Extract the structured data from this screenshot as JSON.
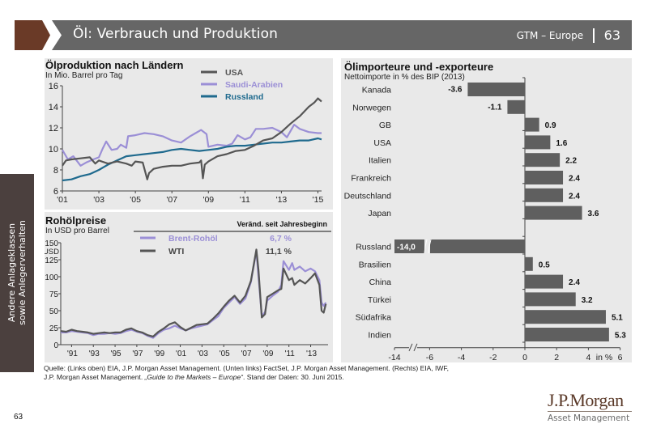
{
  "header": {
    "title": "Öl: Verbrauch und Produktion",
    "section": "GTM – Europe",
    "page": "63",
    "accent_color": "#6a3a27",
    "bar_color": "#666666"
  },
  "side_tab": {
    "line1": "Andere Anlageklassen",
    "line2": "sowie Anlegerverhalten"
  },
  "chart_data": [
    {
      "type": "line",
      "title": "Ölproduktion nach Ländern",
      "subtitle": "In Mio. Barrel pro Tag",
      "xlabel": "",
      "ylabel": "",
      "ylim": [
        6,
        16
      ],
      "yticks": [
        6,
        8,
        10,
        12,
        14,
        16
      ],
      "xlim": [
        2001,
        2015.2
      ],
      "xticks": [
        2001,
        2003,
        2005,
        2007,
        2009,
        2011,
        2013,
        2015
      ],
      "xtick_labels": [
        "'01",
        "'03",
        "'05",
        "'07",
        "'09",
        "'11",
        "'13",
        "'15"
      ],
      "legend_position": "top-center",
      "series": [
        {
          "name": "USA",
          "color": "#555555",
          "x": [
            2001,
            2001.2,
            2001.5,
            2002,
            2002.5,
            2002.8,
            2003,
            2003.5,
            2004,
            2004.5,
            2004.8,
            2005,
            2005.4,
            2005.65,
            2005.75,
            2006,
            2006.5,
            2007,
            2007.5,
            2008,
            2008.5,
            2008.6,
            2008.7,
            2008.8,
            2009,
            2009.5,
            2010,
            2010.5,
            2011,
            2011.5,
            2012,
            2012.5,
            2013,
            2013.5,
            2014,
            2014.5,
            2014.8,
            2015,
            2015.2
          ],
          "values": [
            8.4,
            8.9,
            9.0,
            9.1,
            9.2,
            8.6,
            8.9,
            8.6,
            8.8,
            8.6,
            8.4,
            8.8,
            8.7,
            7.1,
            7.7,
            8.1,
            8.3,
            8.4,
            8.4,
            8.6,
            8.7,
            8.9,
            7.2,
            8.5,
            8.8,
            9.3,
            9.5,
            9.8,
            9.9,
            10.3,
            10.8,
            11.0,
            11.6,
            12.4,
            13.1,
            14.0,
            14.4,
            14.8,
            14.5
          ]
        },
        {
          "name": "Saudi-Arabien",
          "color": "#9b8fd6",
          "x": [
            2001,
            2001.3,
            2001.6,
            2002,
            2002.3,
            2002.7,
            2003,
            2003.2,
            2003.4,
            2003.7,
            2004,
            2004.2,
            2004.5,
            2004.6,
            2005,
            2005.5,
            2006,
            2006.5,
            2007,
            2007.5,
            2008,
            2008.3,
            2008.6,
            2008.9,
            2009,
            2009.5,
            2010,
            2010.3,
            2010.6,
            2011,
            2011.3,
            2011.6,
            2012,
            2012.5,
            2013,
            2013.3,
            2013.7,
            2014,
            2014.5,
            2015,
            2015.2
          ],
          "values": [
            9.9,
            9.0,
            9.3,
            8.4,
            8.7,
            9.0,
            9.2,
            10.0,
            10.7,
            9.9,
            10.0,
            10.4,
            10.1,
            11.2,
            11.3,
            11.5,
            11.4,
            11.2,
            10.8,
            10.6,
            11.2,
            11.5,
            11.8,
            11.4,
            10.2,
            10.4,
            10.3,
            10.5,
            11.3,
            10.9,
            11.1,
            11.9,
            11.9,
            12.0,
            11.6,
            11.1,
            12.3,
            11.9,
            11.6,
            11.5,
            11.5
          ]
        },
        {
          "name": "Russland",
          "color": "#1f6a8e",
          "x": [
            2001,
            2001.5,
            2002,
            2002.5,
            2003,
            2003.5,
            2004,
            2004.5,
            2005,
            2005.5,
            2006,
            2006.5,
            2007,
            2007.5,
            2008,
            2008.5,
            2009,
            2009.5,
            2010,
            2010.5,
            2011,
            2011.5,
            2012,
            2012.5,
            2013,
            2013.5,
            2014,
            2014.5,
            2015,
            2015.2
          ],
          "values": [
            7.0,
            7.1,
            7.4,
            7.6,
            8.0,
            8.5,
            8.9,
            9.3,
            9.4,
            9.5,
            9.6,
            9.7,
            9.9,
            10.0,
            9.9,
            9.8,
            9.9,
            10.0,
            10.2,
            10.3,
            10.3,
            10.4,
            10.5,
            10.6,
            10.6,
            10.7,
            10.8,
            10.8,
            11.0,
            10.9
          ]
        }
      ]
    },
    {
      "type": "line",
      "title": "Rohölpreise",
      "subtitle": "In USD pro Barrel",
      "ylabel": "USD",
      "ylim": [
        0,
        150
      ],
      "yticks": [
        0,
        25,
        50,
        75,
        100,
        125,
        150
      ],
      "xlim": [
        1990,
        2014.6
      ],
      "xticks": [
        1991,
        1993,
        1995,
        1997,
        1999,
        2001,
        2003,
        2005,
        2007,
        2009,
        2011,
        2013
      ],
      "xtick_labels": [
        "'91",
        "'93",
        "'95",
        "'97",
        "'99",
        "'01",
        "'03",
        "'05",
        "'07",
        "'09",
        "'11",
        "'13"
      ],
      "legend_header": "Veränd. seit Jahresbeginn",
      "legend_position": "top-right",
      "series": [
        {
          "name": "Brent-Rohöl",
          "ytd_change": "6,7 %",
          "color": "#9b8fd6",
          "x": [
            1990,
            1990.5,
            1991,
            1991.5,
            1992,
            1992.5,
            1993,
            1993.5,
            1994,
            1994.5,
            1995,
            1995.5,
            1996,
            1996.5,
            1997,
            1997.5,
            1998,
            1998.5,
            1999,
            1999.5,
            2000,
            2000.5,
            2001,
            2001.5,
            2002,
            2002.5,
            2003,
            2003.5,
            2004,
            2004.5,
            2005,
            2005.5,
            2006,
            2006.5,
            2007,
            2007.5,
            2008,
            2008.2,
            2008.5,
            2008.8,
            2009,
            2009.5,
            2010,
            2010.3,
            2010.5,
            2011,
            2011.3,
            2011.5,
            2012,
            2012.5,
            2013,
            2013.4,
            2013.8,
            2014,
            2014.2,
            2014.4
          ],
          "values": [
            18,
            18,
            20,
            19,
            18,
            17,
            14,
            16,
            16,
            17,
            16,
            17,
            20,
            22,
            19,
            17,
            13,
            10,
            17,
            22,
            24,
            28,
            24,
            21,
            24,
            26,
            28,
            30,
            36,
            42,
            54,
            62,
            70,
            60,
            68,
            92,
            138,
            100,
            42,
            48,
            65,
            72,
            78,
            88,
            123,
            110,
            120,
            110,
            115,
            108,
            112,
            108,
            95,
            62,
            57,
            62
          ]
        },
        {
          "name": "WTI",
          "ytd_change": "11,1 %",
          "color": "#555555",
          "x": [
            1990,
            1990.5,
            1991,
            1991.5,
            1992,
            1992.5,
            1993,
            1993.5,
            1994,
            1994.5,
            1995,
            1995.5,
            1996,
            1996.5,
            1997,
            1997.5,
            1998,
            1998.5,
            1999,
            1999.5,
            2000,
            2000.5,
            2001,
            2001.5,
            2002,
            2002.5,
            2003,
            2003.5,
            2004,
            2004.5,
            2005,
            2005.5,
            2006,
            2006.5,
            2007,
            2007.5,
            2008,
            2008.2,
            2008.5,
            2008.8,
            2009,
            2009.5,
            2010,
            2010.3,
            2010.5,
            2011,
            2011.3,
            2011.5,
            2012,
            2012.5,
            2013,
            2013.4,
            2013.8,
            2014,
            2014.2,
            2014.4
          ],
          "values": [
            20,
            19,
            22,
            20,
            19,
            18,
            16,
            17,
            18,
            17,
            18,
            18,
            22,
            24,
            20,
            18,
            14,
            12,
            19,
            24,
            30,
            33,
            26,
            21,
            25,
            29,
            30,
            31,
            38,
            46,
            56,
            65,
            72,
            62,
            72,
            94,
            140,
            110,
            40,
            45,
            70,
            75,
            80,
            82,
            112,
            95,
            98,
            88,
            95,
            90,
            98,
            105,
            88,
            50,
            47,
            60
          ]
        }
      ]
    },
    {
      "type": "bar",
      "orientation": "horizontal",
      "title": "Ölimporteure und -exporteure",
      "subtitle": "Nettoimporte in % des BIP (2013)",
      "xlabel": "in %",
      "xlim": [
        -14,
        6
      ],
      "xticks": [
        -14,
        -6,
        -4,
        -2,
        0,
        2,
        4,
        6
      ],
      "axis_break": "between -14 and -6",
      "bar_color": "#5f5f5f",
      "groups": [
        {
          "categories": [
            "Kanada",
            "Norwegen",
            "GB",
            "USA",
            "Italien",
            "Frankreich",
            "Deutschland",
            "Japan"
          ],
          "values": [
            -3.6,
            -1.1,
            0.9,
            1.6,
            2.2,
            2.4,
            2.4,
            3.6
          ],
          "labels": [
            "-3.6",
            "-1.1",
            "0.9",
            "1.6",
            "2.2",
            "2.4",
            "2.4",
            "3.6"
          ]
        },
        {
          "categories": [
            "Russland",
            "Brasilien",
            "China",
            "Türkei",
            "Südafrika",
            "Indien"
          ],
          "values": [
            -14.0,
            0.5,
            2.4,
            3.2,
            5.1,
            5.3
          ],
          "labels": [
            "-14,0",
            "0.5",
            "2.4",
            "3.2",
            "5.1",
            "5.3"
          ]
        }
      ]
    }
  ],
  "footer": {
    "source_line1": "Quelle: (Links oben) EIA, J.P. Morgan Asset Management. (Unten links) FactSet, J.P. Morgan Asset Management. (Rechts) EIA, IWF,",
    "source_line2_prefix": "J.P. Morgan Asset Management. ",
    "source_line2_italic": "„Guide to the Markets – Europe“",
    "source_line2_suffix": ". Stand der Daten: 30. Juni 2015.",
    "page_number": "63",
    "logo_main": "J.P.Morgan",
    "logo_sub": "Asset Management"
  }
}
